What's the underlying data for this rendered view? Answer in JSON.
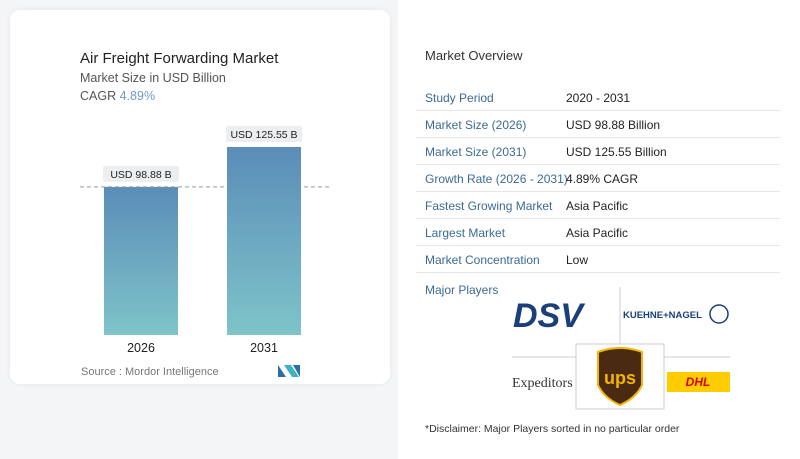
{
  "header": {
    "title": "Air Freight Forwarding Market",
    "subtitle": "Market Size in USD Billion",
    "cagr_label": "CAGR",
    "cagr_value": "4.89%"
  },
  "chart_data": {
    "type": "bar",
    "categories": [
      "2026",
      "2031"
    ],
    "values": [
      98.88,
      125.55
    ],
    "data_labels": [
      "USD 98.88 B",
      "USD 125.55 B"
    ],
    "ylim": [
      0,
      130
    ],
    "color_top": "#5b8db8",
    "color_bottom": "#7ec4c9",
    "grid": false
  },
  "source": "Source :  Mordor Intelligence",
  "overview": {
    "title": "Market Overview",
    "rows": [
      {
        "label": "Study Period",
        "value": "2020 - 2031"
      },
      {
        "label": "Market Size (2026)",
        "value": "USD 98.88 Billion"
      },
      {
        "label": "Market Size (2031)",
        "value": "USD 125.55 Billion"
      },
      {
        "label": "Growth Rate (2026 - 2031)",
        "value": "4.89% CAGR"
      },
      {
        "label": "Fastest Growing Market",
        "value": "Asia Pacific"
      },
      {
        "label": "Largest Market",
        "value": "Asia Pacific"
      },
      {
        "label": "Market Concentration",
        "value": "Low"
      }
    ],
    "major_players_label": "Major Players",
    "players": [
      "DSV",
      "KUEHNE+NAGEL",
      "Expeditors",
      "UPS",
      "DHL"
    ],
    "disclaimer": "*Disclaimer: Major Players sorted in no particular order"
  }
}
